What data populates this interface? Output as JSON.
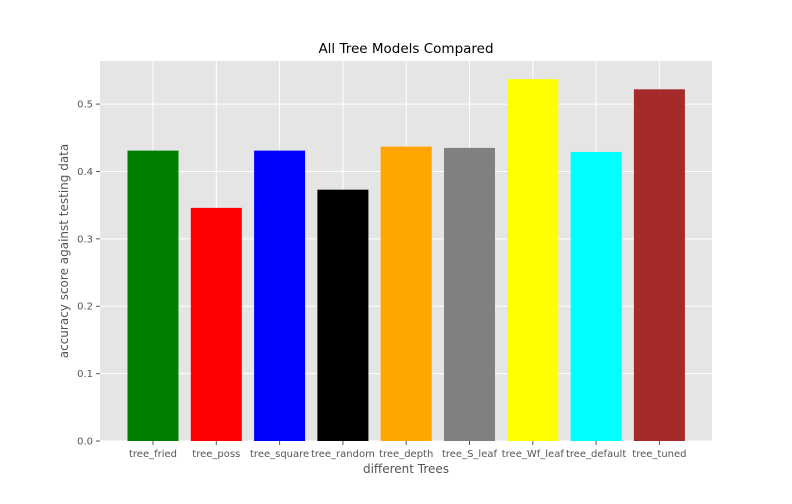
{
  "chart_data": {
    "type": "bar",
    "title": "All Tree Models Compared",
    "xlabel": "different Trees",
    "ylabel": "accuracy score against testing data",
    "categories": [
      "tree_fried",
      "tree_poss",
      "tree_square",
      "tree_random",
      "tree_depth",
      "tree_S_leaf",
      "tree_Wf_leaf",
      "tree_default",
      "tree_tuned"
    ],
    "values": [
      0.431,
      0.346,
      0.431,
      0.373,
      0.437,
      0.435,
      0.537,
      0.429,
      0.522
    ],
    "colors": [
      "#008000",
      "#ff0000",
      "#0000ff",
      "#000000",
      "#ffa500",
      "#808080",
      "#ffff00",
      "#00ffff",
      "#a52a2a"
    ],
    "ylim": [
      0,
      0.564
    ],
    "yticks": [
      0.0,
      0.1,
      0.2,
      0.3,
      0.4,
      0.5
    ],
    "ytick_labels": [
      "0.0",
      "0.1",
      "0.2",
      "0.3",
      "0.4",
      "0.5"
    ],
    "grid": true,
    "style": "ggplot"
  }
}
